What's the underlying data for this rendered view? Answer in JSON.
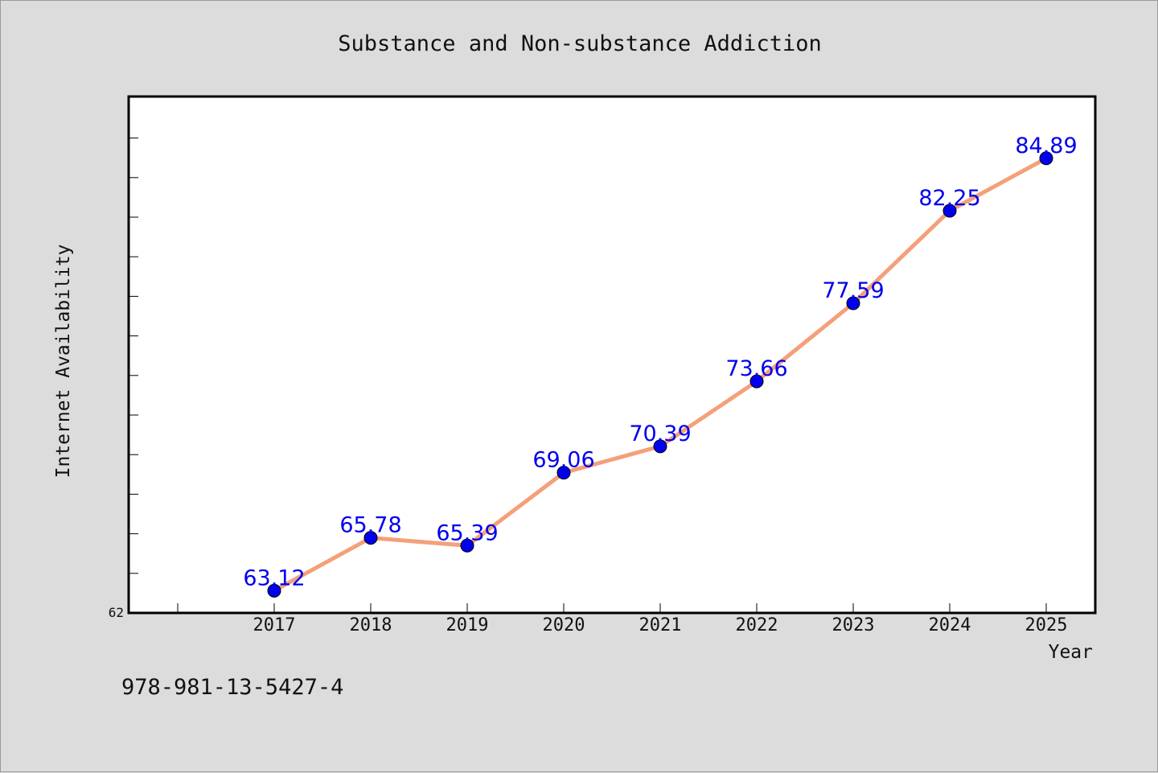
{
  "chart_data": {
    "type": "line",
    "title": "Substance and Non-substance Addiction",
    "xlabel": "Year",
    "ylabel": "Internet Availability",
    "categories": [
      "2017",
      "2018",
      "2019",
      "2020",
      "2021",
      "2022",
      "2023",
      "2024",
      "2025"
    ],
    "series": [
      {
        "values": [
          63.12,
          65.78,
          65.39,
          69.06,
          70.39,
          73.66,
          77.59,
          82.25,
          84.89
        ],
        "data_labels": [
          "63.12",
          "65.78",
          "65.39",
          "69.06",
          "70.39",
          "73.66",
          "77.59",
          "82.25",
          "84.89"
        ],
        "line_color": "#f4a07a",
        "marker_color": "#0000ee"
      }
    ],
    "ylim": [
      62,
      88
    ],
    "y_tick_labels": [
      "62"
    ],
    "grid": false,
    "label_color": "#0000ee"
  },
  "footer_note": "978-981-13-5427-4"
}
